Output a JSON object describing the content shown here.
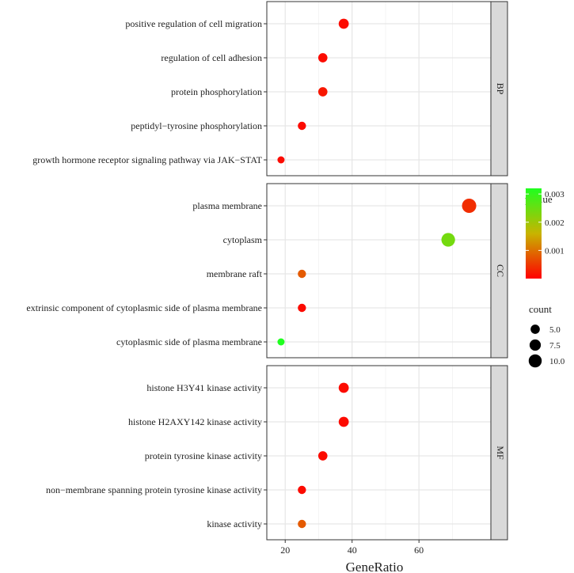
{
  "chart_data": {
    "type": "scatter",
    "xlabel": "GeneRatio",
    "ylabel": "",
    "xlim": [
      14.5,
      81.5
    ],
    "xticks": [
      20,
      40,
      60
    ],
    "grid": true,
    "legend_position": "right",
    "panels": [
      {
        "facet": "BP",
        "terms": [
          {
            "term": "positive regulation of cell migration",
            "x": 37.5,
            "pvalue": 0.0001,
            "count": 6
          },
          {
            "term": "regulation of cell adhesion",
            "x": 31.25,
            "pvalue": 0.0001,
            "count": 5
          },
          {
            "term": "protein phosphorylation",
            "x": 31.25,
            "pvalue": 0.0002,
            "count": 5
          },
          {
            "term": "peptidyl−tyrosine phosphorylation",
            "x": 25,
            "pvalue": 0.0001,
            "count": 4
          },
          {
            "term": "growth hormone receptor signaling pathway via JAK−STAT",
            "x": 18.75,
            "pvalue": 0.0001,
            "count": 3
          }
        ]
      },
      {
        "facet": "CC",
        "terms": [
          {
            "term": "plasma membrane",
            "x": 75,
            "pvalue": 0.0004,
            "count": 12
          },
          {
            "term": "cytoplasm",
            "x": 68.75,
            "pvalue": 0.0024,
            "count": 11
          },
          {
            "term": "membrane raft",
            "x": 25,
            "pvalue": 0.0008,
            "count": 4
          },
          {
            "term": "extrinsic component of cytoplasmic side of plasma membrane",
            "x": 25,
            "pvalue": 0.0001,
            "count": 4
          },
          {
            "term": "cytoplasmic side of plasma membrane",
            "x": 18.75,
            "pvalue": 0.0032,
            "count": 3
          }
        ]
      },
      {
        "facet": "MF",
        "terms": [
          {
            "term": "histone H3Y41 kinase activity",
            "x": 37.5,
            "pvalue": 0.0001,
            "count": 6
          },
          {
            "term": "histone H2AXY142 kinase activity",
            "x": 37.5,
            "pvalue": 0.0001,
            "count": 6
          },
          {
            "term": "protein tyrosine kinase activity",
            "x": 31.25,
            "pvalue": 0.0001,
            "count": 5
          },
          {
            "term": "non−membrane spanning protein tyrosine kinase activity",
            "x": 25,
            "pvalue": 0.0001,
            "count": 4
          },
          {
            "term": "kinase activity",
            "x": 25,
            "pvalue": 0.0008,
            "count": 4
          }
        ]
      }
    ],
    "color_legend": {
      "title": "pvalue",
      "range": [
        0.0,
        0.0032
      ],
      "ticks": [
        {
          "label": "0.003",
          "value": 0.003
        },
        {
          "label": "0.002",
          "value": 0.002
        },
        {
          "label": "0.001",
          "value": 0.001
        }
      ],
      "colors": {
        "low": "#ff0000",
        "mid": "#c8b400",
        "high": "#1fff1f"
      }
    },
    "size_legend": {
      "title": "count",
      "entries": [
        {
          "label": "5.0",
          "value": 5
        },
        {
          "label": "7.5",
          "value": 7.5
        },
        {
          "label": "10.0",
          "value": 10
        }
      ]
    }
  }
}
